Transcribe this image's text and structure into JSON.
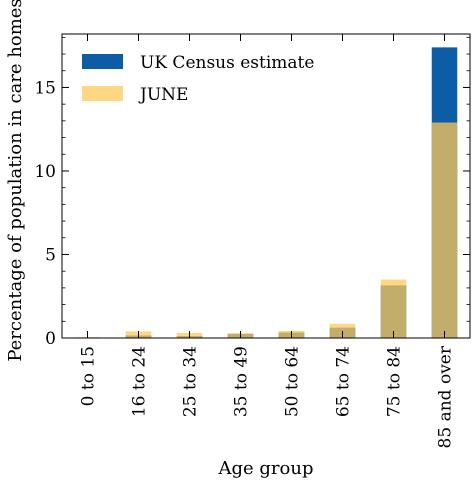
{
  "chart_data": {
    "type": "bar",
    "title": "",
    "xlabel": "Age group",
    "ylabel": "Percentage of population in care homes",
    "ylim": [
      0,
      18.2
    ],
    "yticks": [
      0,
      5,
      10,
      15
    ],
    "y_minor_step": 1,
    "grid": false,
    "legend_placement": "top-left",
    "categories": [
      "0 to 15",
      "16 to 24",
      "25 to 34",
      "35 to 49",
      "50 to 64",
      "65 to 74",
      "75 to 84",
      "85 and over"
    ],
    "series": [
      {
        "name": "UK Census estimate",
        "color": "#0c5da5",
        "values": [
          0.02,
          0.15,
          0.12,
          0.25,
          0.33,
          0.62,
          3.15,
          17.4
        ]
      },
      {
        "name": "JUNE",
        "color": "#ffc857",
        "opacity": 0.75,
        "values": [
          0.05,
          0.4,
          0.3,
          0.28,
          0.42,
          0.85,
          3.5,
          12.9
        ]
      }
    ]
  }
}
